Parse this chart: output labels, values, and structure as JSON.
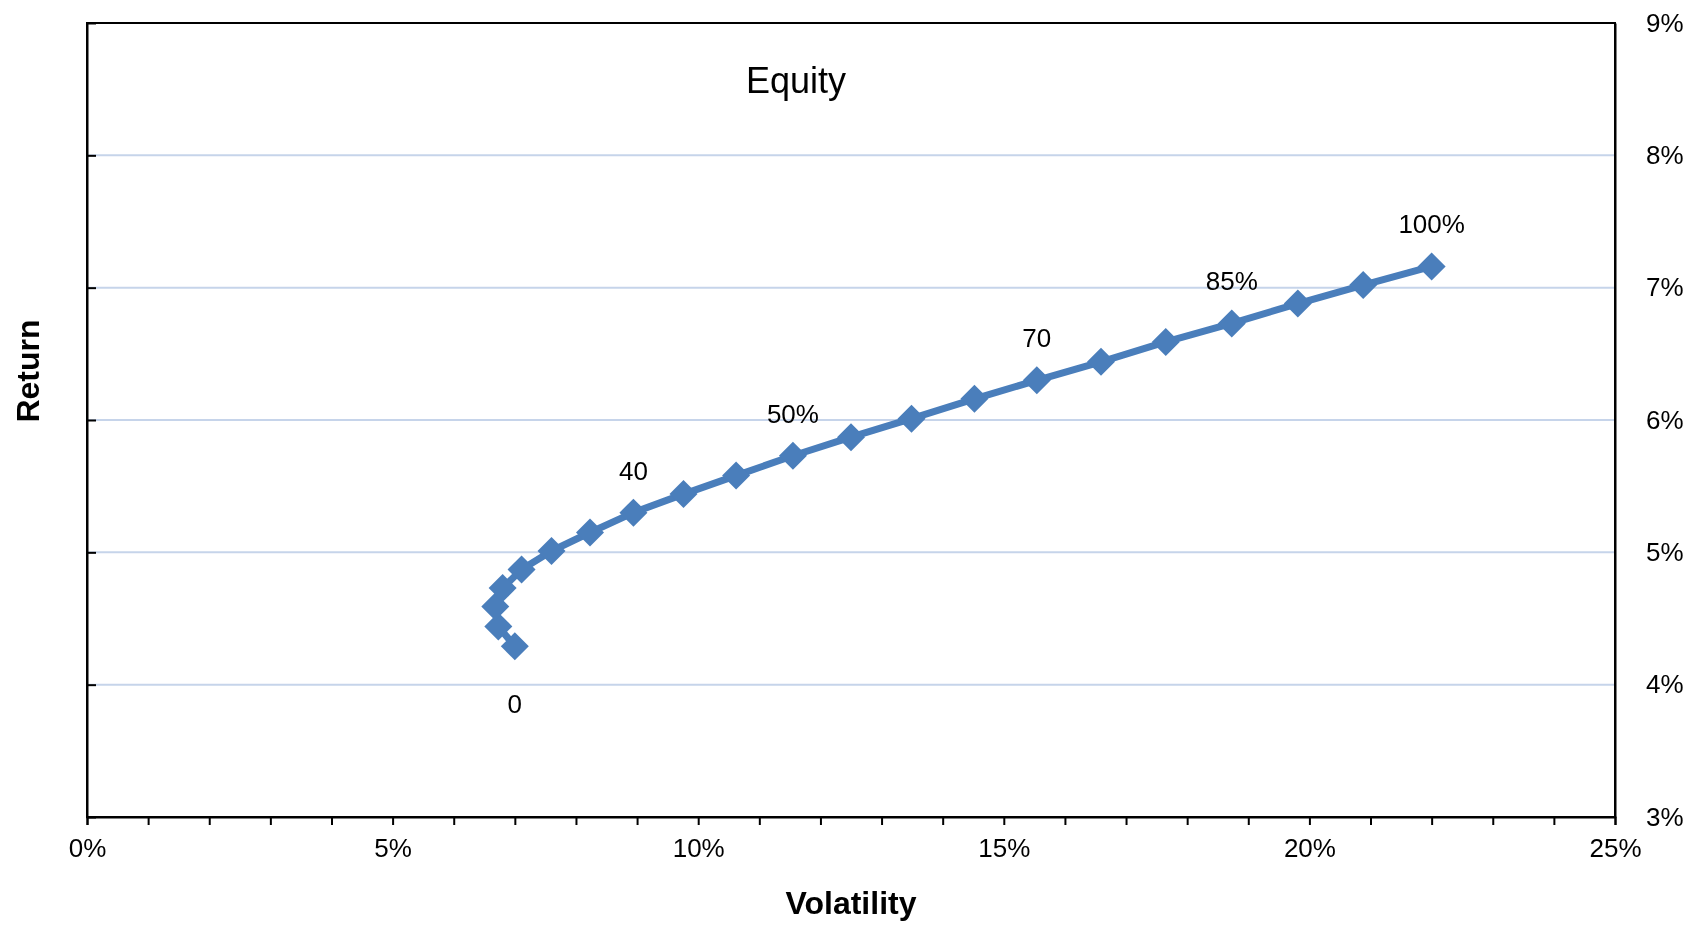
{
  "chart_data": {
    "type": "line",
    "title": "Equity",
    "xlabel": "Volatility",
    "ylabel": "Return",
    "x": [
      7.0,
      6.73,
      6.68,
      6.8,
      7.11,
      7.6,
      8.23,
      8.94,
      9.76,
      10.62,
      11.55,
      12.5,
      13.49,
      14.52,
      15.54,
      16.59,
      17.65,
      18.73,
      19.81,
      20.88,
      22.0
    ],
    "values": [
      4.29,
      4.44,
      4.59,
      4.73,
      4.87,
      5.01,
      5.15,
      5.3,
      5.44,
      5.58,
      5.73,
      5.87,
      6.01,
      6.16,
      6.3,
      6.44,
      6.59,
      6.73,
      6.88,
      7.02,
      7.16
    ],
    "color": "#4a7ebb",
    "marker": "diamond",
    "line_style": "solid",
    "grid": "y",
    "xlim": [
      0,
      25
    ],
    "xticks": [
      {
        "value": 0,
        "label": "0%"
      },
      {
        "value": 1,
        "label": null
      },
      {
        "value": 2,
        "label": null
      },
      {
        "value": 3,
        "label": null
      },
      {
        "value": 4,
        "label": null
      },
      {
        "value": 5,
        "label": "5%"
      },
      {
        "value": 6,
        "label": null
      },
      {
        "value": 7,
        "label": null
      },
      {
        "value": 8,
        "label": null
      },
      {
        "value": 9,
        "label": null
      },
      {
        "value": 10,
        "label": "10%"
      },
      {
        "value": 11,
        "label": null
      },
      {
        "value": 12,
        "label": null
      },
      {
        "value": 13,
        "label": null
      },
      {
        "value": 14,
        "label": null
      },
      {
        "value": 15,
        "label": "15%"
      },
      {
        "value": 16,
        "label": null
      },
      {
        "value": 17,
        "label": null
      },
      {
        "value": 18,
        "label": null
      },
      {
        "value": 19,
        "label": null
      },
      {
        "value": 20,
        "label": "20%"
      },
      {
        "value": 21,
        "label": null
      },
      {
        "value": 22,
        "label": null
      },
      {
        "value": 23,
        "label": null
      },
      {
        "value": 24,
        "label": null
      },
      {
        "value": 25,
        "label": "25%"
      }
    ],
    "ylim": [
      3,
      9
    ],
    "yticks": [
      {
        "value": 3,
        "label": "3%"
      },
      {
        "value": 4,
        "label": "4%"
      },
      {
        "value": 5,
        "label": "5%"
      },
      {
        "value": 6,
        "label": "6%"
      },
      {
        "value": 7,
        "label": "7%"
      },
      {
        "value": 8,
        "label": "8%"
      },
      {
        "value": 9,
        "label": "9%"
      }
    ],
    "annotations": [
      {
        "text": "0",
        "x": 7.0,
        "y": 4.29
      },
      {
        "text": "40",
        "x": 8.94,
        "y": 5.3
      },
      {
        "text": "50%",
        "x": 11.55,
        "y": 5.73
      },
      {
        "text": "70",
        "x": 15.54,
        "y": 6.3
      },
      {
        "text": "85%",
        "x": 18.73,
        "y": 6.73
      },
      {
        "text": "100%",
        "x": 22.0,
        "y": 7.16
      }
    ]
  }
}
